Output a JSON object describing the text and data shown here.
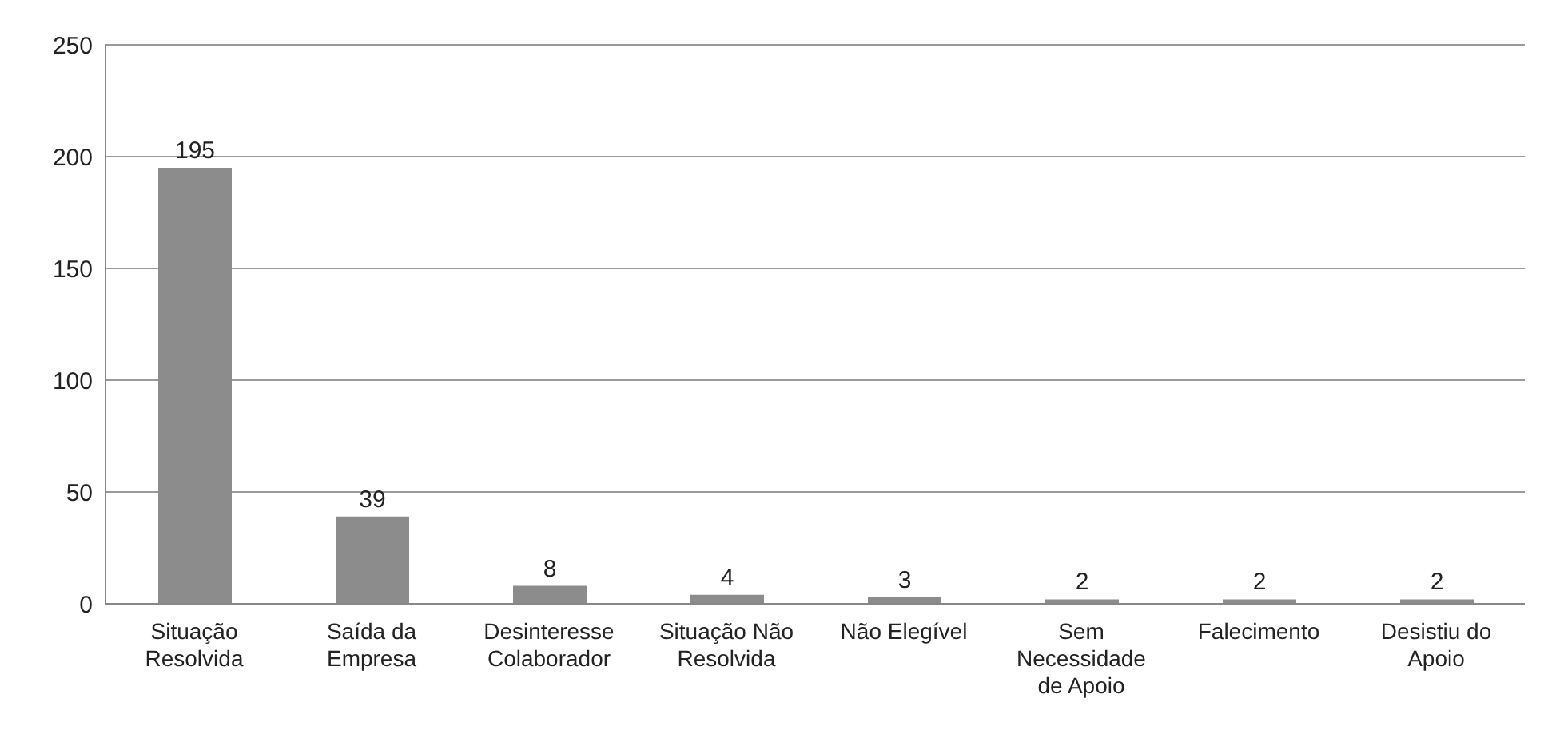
{
  "chart_data": {
    "type": "bar",
    "categories": [
      "Situação Resolvida",
      "Saída da Empresa",
      "Desinteresse Colaborador",
      "Situação Não Resolvida",
      "Não Elegível",
      "Sem Necessidade de Apoio",
      "Falecimento",
      "Desistiu do Apoio"
    ],
    "values": [
      195,
      39,
      8,
      4,
      3,
      2,
      2,
      2
    ],
    "color": "#8c8c8c",
    "ylim": [
      0,
      250
    ],
    "yticks": [
      0,
      50,
      100,
      150,
      200,
      250
    ],
    "grid": "y",
    "data_labels": true
  }
}
